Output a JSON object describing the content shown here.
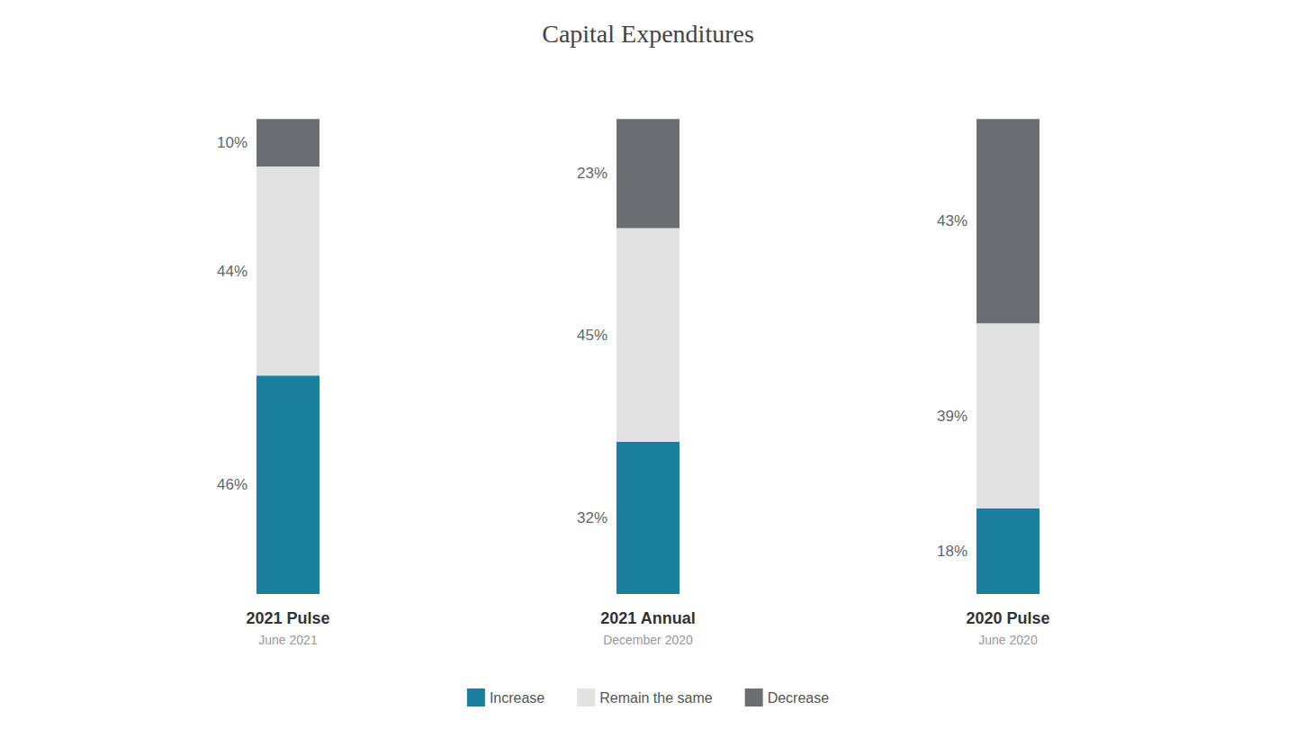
{
  "chart_data": {
    "type": "bar",
    "title": "Capital Expenditures",
    "categories": [
      "2021 Pulse",
      "2021 Annual",
      "2020 Pulse"
    ],
    "subtitles": [
      "June 2021",
      "December 2020",
      "June 2020"
    ],
    "stacked": true,
    "data_labels": true,
    "series": [
      {
        "name": "Increase",
        "color": "#1a7f9c",
        "values": [
          46,
          32,
          18
        ],
        "value_labels": [
          "46%",
          "32%",
          "18%"
        ]
      },
      {
        "name": "Remain the same",
        "color": "#e2e2e2",
        "values": [
          44,
          45,
          39
        ],
        "value_labels": [
          "44%",
          "45%",
          "39%"
        ]
      },
      {
        "name": "Decrease",
        "color": "#6b6e72",
        "values": [
          10,
          23,
          43
        ],
        "value_labels": [
          "10%",
          "23%",
          "43%"
        ]
      }
    ],
    "ylim": [
      0,
      108
    ],
    "grid": false,
    "tick_labels": "x",
    "legend": "bottom"
  }
}
